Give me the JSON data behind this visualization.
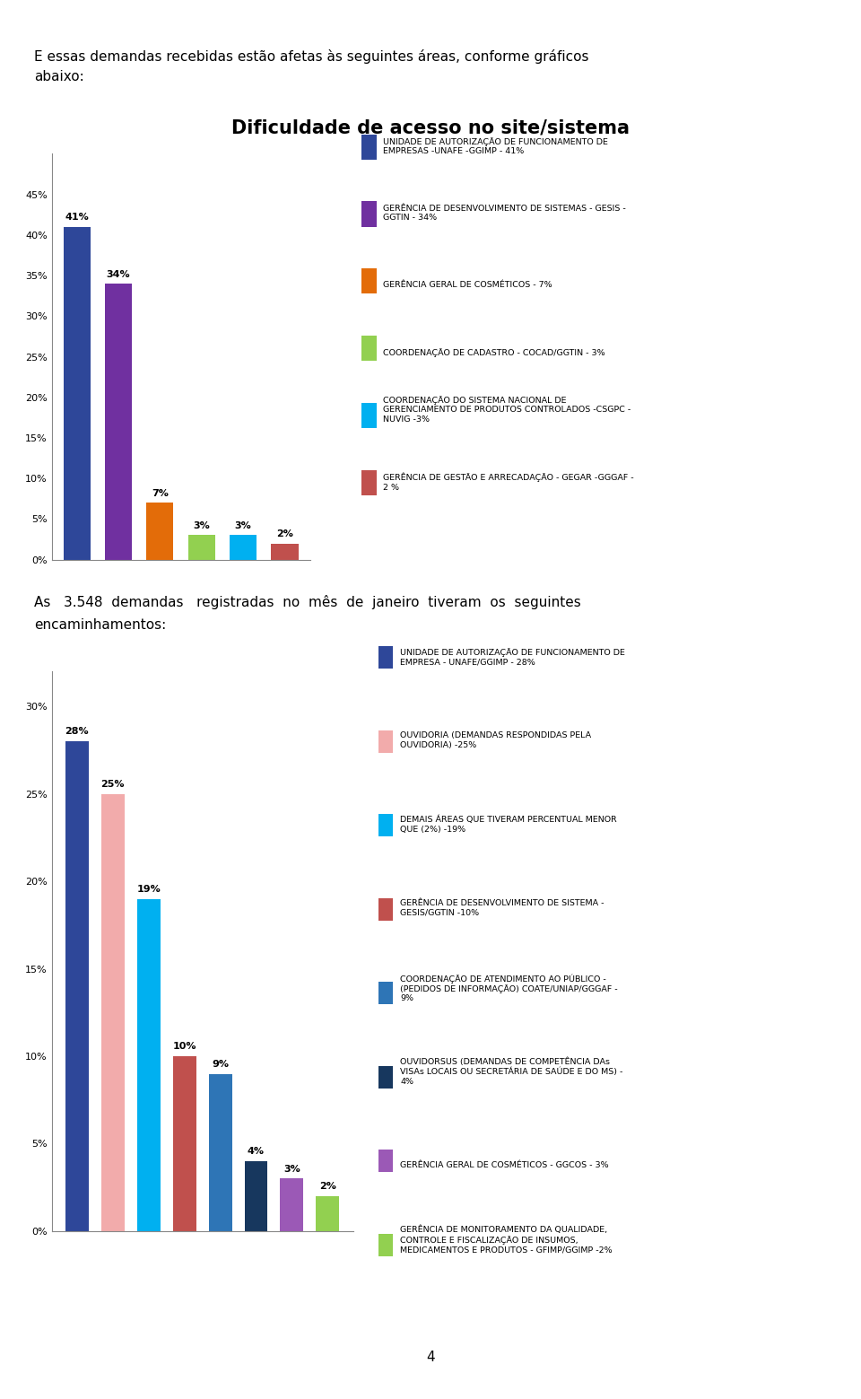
{
  "page_bg": "#ffffff",
  "intro_text1": "E essas demandas recebidas estão afetas às seguintes áreas, conforme gráficos",
  "intro_text2": "abaixo:",
  "chart1": {
    "title": "Dificuldade de acesso no site/sistema",
    "values": [
      41,
      34,
      7,
      3,
      3,
      2
    ],
    "colors": [
      "#2E4799",
      "#7030A0",
      "#E36C09",
      "#92D050",
      "#00B0F0",
      "#C0504D"
    ],
    "ylim": 50,
    "yticks": [
      0,
      5,
      10,
      15,
      20,
      25,
      30,
      35,
      40,
      45
    ],
    "yticklabels": [
      "0%",
      "5%",
      "10%",
      "15%",
      "20%",
      "25%",
      "30%",
      "35%",
      "40%",
      "45%"
    ],
    "bar_labels": [
      "41%",
      "34%",
      "7%",
      "3%",
      "3%",
      "2%"
    ],
    "legend_items": [
      {
        "color": "#2E4799",
        "label": "UNIDADE DE AUTORIZAÇÃO DE FUNCIONAMENTO DE\nEMPRESAS -UNAFE -GGIMP - 41%"
      },
      {
        "color": "#7030A0",
        "label": "GERÊNCIA DE DESENVOLVIMENTO DE SISTEMAS - GESIS -\nGGTIN - 34%"
      },
      {
        "color": "#E36C09",
        "label": "GERÊNCIA GERAL DE COSMÉTICOS - 7%"
      },
      {
        "color": "#92D050",
        "label": "COORDENAÇÃO DE CADASTRO - COCAD/GGTIN - 3%"
      },
      {
        "color": "#00B0F0",
        "label": "COORDENAÇÃO DO SISTEMA NACIONAL DE\nGERENCIAMENTO DE PRODUTOS CONTROLADOS -CSGPC -\nNUVIG -3%"
      },
      {
        "color": "#C0504D",
        "label": "GERÊNCIA DE GESTÃO E ARRECADAÇÃO - GEGAR -GGGAF -\n2 %"
      }
    ]
  },
  "middle_text1": "As   3.548  demandas   registradas  no  mês  de  janeiro  tiveram  os  seguintes",
  "middle_text2": "encaminhamentos:",
  "chart2": {
    "values": [
      28,
      25,
      19,
      10,
      9,
      4,
      3,
      2
    ],
    "colors": [
      "#2E4799",
      "#F2ABAB",
      "#00B0F0",
      "#C0504D",
      "#2E75B6",
      "#17375E",
      "#9B59B6",
      "#92D050"
    ],
    "ylim": 32,
    "yticks": [
      0,
      5,
      10,
      15,
      20,
      25,
      30
    ],
    "yticklabels": [
      "0%",
      "5%",
      "10%",
      "15%",
      "20%",
      "25%",
      "30%"
    ],
    "bar_labels": [
      "28%",
      "25%",
      "19%",
      "10%",
      "9%",
      "4%",
      "3%",
      "2%"
    ],
    "legend_items": [
      {
        "color": "#2E4799",
        "label": "UNIDADE DE AUTORIZAÇÃO DE FUNCIONAMENTO DE\nEMPRESA - UNAFE/GGIMP - 28%"
      },
      {
        "color": "#F2ABAB",
        "label": "OUVIDORIA (DEMANDAS RESPONDIDAS PELA\nOUVIDORIA) -25%"
      },
      {
        "color": "#00B0F0",
        "label": "DEMAIS ÁREAS QUE TIVERAM PERCENTUAL MENOR\nQUE (2%) -19%"
      },
      {
        "color": "#C0504D",
        "label": "GERÊNCIA DE DESENVOLVIMENTO DE SISTEMA -\nGESIS/GGTIN -10%"
      },
      {
        "color": "#2E75B6",
        "label": "COORDENAÇÃO DE ATENDIMENTO AO PÚBLICO -\n(PEDIDOS DE INFORMAÇÃO) COATE/UNIAP/GGGAF -\n9%"
      },
      {
        "color": "#17375E",
        "label": "OUVIDORSUS (DEMANDAS DE COMPETÊNCIA DAs\nVISAs LOCAIS OU SECRETÁRIA DE SAÚDE E DO MS) -\n4%"
      },
      {
        "color": "#9B59B6",
        "label": "GERÊNCIA GERAL DE COSMÉTICOS - GGCOS - 3%"
      },
      {
        "color": "#92D050",
        "label": "GERÊNCIA DE MONITORAMENTO DA QUALIDADE,\nCONTROLE E FISCALIZAÇÃO DE INSUMOS,\nMEDICAMENTOS E PRODUTOS - GFIMP/GGIMP -2%"
      }
    ]
  },
  "footer_text": "4"
}
